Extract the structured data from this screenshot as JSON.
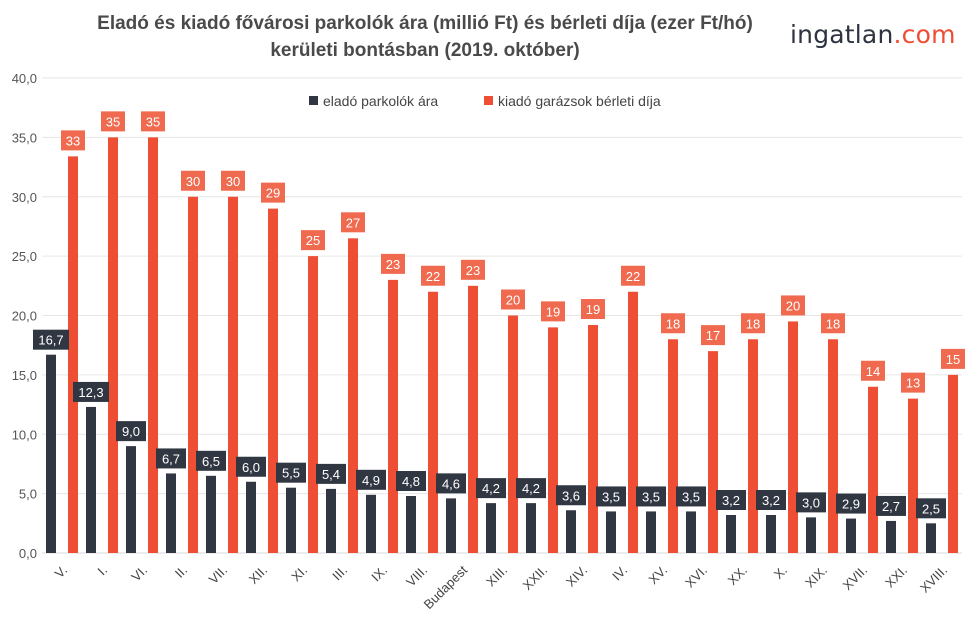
{
  "header": {
    "title_line1": "Eladó és kiadó fővárosi parkolók ára (millió Ft) és bérleti díja (ezer Ft/hó)",
    "title_line2": "kerületi bontásban (2019. október)"
  },
  "logo": {
    "name": "ingatlan",
    "tld": ".com"
  },
  "colors": {
    "sale": "#303642",
    "rent": "#ee4e34",
    "grid": "#e6e6e6"
  },
  "chart_data": {
    "type": "bar",
    "title": "Eladó és kiadó fővárosi parkolók ára (millió Ft) és bérleti díja (ezer Ft/hó) kerületi bontásban (2019. október)",
    "categories": [
      "V.",
      "I.",
      "VI.",
      "II.",
      "VII.",
      "XII.",
      "XI.",
      "III.",
      "IX.",
      "VIII.",
      "Budapest",
      "XIII.",
      "XXII.",
      "XIV.",
      "IV.",
      "XV.",
      "XVI.",
      "XX.",
      "X.",
      "XIX.",
      "XVII.",
      "XXI.",
      "XVIII."
    ],
    "series": [
      {
        "name": "eladó parkolók ára",
        "color": "#303642",
        "values": [
          16.7,
          12.3,
          9.0,
          6.7,
          6.5,
          6.0,
          5.5,
          5.4,
          4.9,
          4.8,
          4.6,
          4.2,
          4.2,
          3.6,
          3.5,
          3.5,
          3.5,
          3.2,
          3.2,
          3.0,
          2.9,
          2.7,
          2.5
        ],
        "labels": [
          "16,7",
          "12,3",
          "9,0",
          "6,7",
          "6,5",
          "6,0",
          "5,5",
          "5,4",
          "4,9",
          "4,8",
          "4,6",
          "4,2",
          "4,2",
          "3,6",
          "3,5",
          "3,5",
          "3,5",
          "3,2",
          "3,2",
          "3,0",
          "2,9",
          "2,7",
          "2,5"
        ]
      },
      {
        "name": "kiadó garázsok bérleti díja",
        "color": "#ee4e34",
        "values": [
          33.4,
          35.0,
          35.0,
          30.0,
          30.0,
          29.0,
          25.0,
          26.5,
          23.0,
          22.0,
          22.5,
          20.0,
          19.0,
          19.2,
          22.0,
          18.0,
          17.0,
          18.0,
          19.5,
          18.0,
          14.0,
          13.0,
          15.0
        ],
        "labels": [
          "33",
          "35",
          "35",
          "30",
          "30",
          "29",
          "25",
          "27",
          "23",
          "22",
          "23",
          "20",
          "19",
          "19",
          "22",
          "18",
          "17",
          "18",
          "20",
          "18",
          "14",
          "13",
          "15"
        ]
      }
    ],
    "ylim": [
      0,
      40
    ],
    "yticks": [
      "0,0",
      "5,0",
      "10,0",
      "15,0",
      "20,0",
      "25,0",
      "30,0",
      "35,0",
      "40,0"
    ],
    "ytick_values": [
      0,
      5,
      10,
      15,
      20,
      25,
      30,
      35,
      40
    ],
    "grid": true,
    "legend": "top-center",
    "xlabel": "",
    "ylabel": ""
  }
}
